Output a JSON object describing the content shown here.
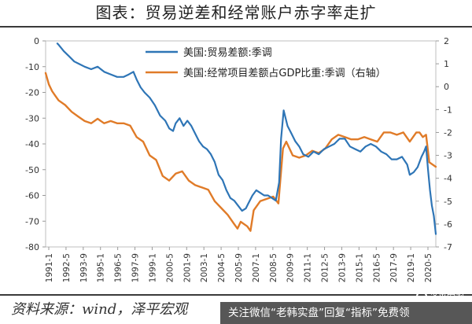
{
  "header": {
    "title": "图表：贸易逆差和经常账户赤字率走扩"
  },
  "footer": {
    "source": "资料来源：wind，泽平宏观",
    "overlay": "关注微信“老韩实盘”回复“指标”免费领"
  },
  "logo": {
    "text": "泽平宏观"
  },
  "chart_data": {
    "type": "line",
    "x_ticks": [
      "1991-1",
      "1992-5",
      "1993-9",
      "1995-1",
      "1996-5",
      "1997-9",
      "1999-1",
      "2000-5",
      "2001-9",
      "2003-1",
      "2004-5",
      "2005-9",
      "2007-1",
      "2008-5",
      "2009-9",
      "2011-1",
      "2012-5",
      "2013-9",
      "2015-1",
      "2016-5",
      "2017-9",
      "2019-1",
      "2020-5"
    ],
    "y_left": {
      "ylim": [
        -80,
        0
      ],
      "ticks": [
        0,
        -10,
        -20,
        -30,
        -40,
        -50,
        -60,
        -70,
        -80
      ]
    },
    "y_right": {
      "ylim": [
        -7,
        2
      ],
      "ticks": [
        2,
        1,
        0,
        -1,
        -2,
        -3,
        -4,
        -5,
        -6,
        -7
      ]
    },
    "legend_position": "top",
    "colors": {
      "trade": "#2e75b6",
      "current_account": "#e07b28"
    },
    "series": [
      {
        "name": "美国:贸易差额:季调",
        "axis": "left",
        "x": [
          1991.9,
          1992.0,
          1992.4,
          1992.8,
          1993.2,
          1993.6,
          1994.0,
          1994.5,
          1995.0,
          1995.5,
          1996.0,
          1996.5,
          1997.0,
          1997.4,
          1997.75,
          1998.0,
          1998.3,
          1998.6,
          1999.0,
          1999.4,
          1999.8,
          2000.2,
          2000.5,
          2000.8,
          2001.0,
          2001.3,
          2001.6,
          2001.9,
          2002.2,
          2002.5,
          2002.8,
          2003.1,
          2003.4,
          2003.7,
          2004.0,
          2004.3,
          2004.6,
          2004.9,
          2005.2,
          2005.5,
          2005.8,
          2006.1,
          2006.4,
          2006.6,
          2006.9,
          2007.2,
          2007.5,
          2007.8,
          2008.1,
          2008.4,
          2008.7,
          2008.95,
          2009.1,
          2009.3,
          2009.6,
          2009.9,
          2010.2,
          2010.5,
          2010.8,
          2011.2,
          2011.6,
          2012.0,
          2012.4,
          2012.8,
          2013.2,
          2013.6,
          2014.0,
          2014.4,
          2014.8,
          2015.2,
          2015.6,
          2016.0,
          2016.4,
          2016.8,
          2017.2,
          2017.6,
          2018.0,
          2018.4,
          2018.8,
          2019.0,
          2019.3,
          2019.6,
          2019.9,
          2020.1,
          2020.25,
          2020.4,
          2020.55,
          2020.7,
          2020.85,
          2021.0
        ],
        "values": [
          -1.0,
          -1.5,
          -4.0,
          -6.0,
          -8.0,
          -9.0,
          -10.0,
          -11.0,
          -10.0,
          -12.0,
          -13.0,
          -14.0,
          -14.0,
          -13.0,
          -12.0,
          -15.0,
          -18.0,
          -20.0,
          -22.0,
          -25.0,
          -29.0,
          -31.0,
          -34.0,
          -35.0,
          -32.0,
          -30.0,
          -33.0,
          -31.0,
          -33.0,
          -36.0,
          -39.0,
          -41.0,
          -42.0,
          -44.0,
          -47.0,
          -52.0,
          -54.0,
          -58.0,
          -61.0,
          -62.0,
          -64.0,
          -66.0,
          -65.0,
          -63.0,
          -60.0,
          -58.0,
          -59.0,
          -60.0,
          -60.0,
          -61.0,
          -62.0,
          -55.0,
          -38.0,
          -27.0,
          -33.0,
          -36.0,
          -39.0,
          -41.0,
          -44.0,
          -45.0,
          -43.0,
          -44.0,
          -42.0,
          -41.0,
          -40.0,
          -38.0,
          -38.0,
          -41.0,
          -42.0,
          -43.0,
          -41.0,
          -40.0,
          -41.0,
          -43.0,
          -44.0,
          -46.0,
          -46.0,
          -45.0,
          -48.0,
          -52.0,
          -51.0,
          -49.0,
          -45.0,
          -43.0,
          -41.0,
          -50.0,
          -58.0,
          -64.0,
          -68.0,
          -75.0
        ]
      },
      {
        "name": "美国:经常项目差额占GDP比重:季调（右轴）",
        "axis": "right",
        "x": [
          1991.0,
          1991.25,
          1991.5,
          1991.75,
          1992.0,
          1992.5,
          1993.0,
          1993.5,
          1994.0,
          1994.5,
          1995.0,
          1995.5,
          1996.0,
          1996.5,
          1997.0,
          1997.5,
          1998.0,
          1998.5,
          1999.0,
          1999.5,
          2000.0,
          2000.5,
          2001.0,
          2001.5,
          2002.0,
          2002.5,
          2003.0,
          2003.5,
          2004.0,
          2004.5,
          2005.0,
          2005.5,
          2005.75,
          2006.0,
          2006.5,
          2006.75,
          2007.0,
          2007.5,
          2008.0,
          2008.5,
          2008.9,
          2009.25,
          2009.5,
          2010.0,
          2010.5,
          2011.0,
          2011.5,
          2012.0,
          2012.5,
          2013.0,
          2013.5,
          2014.0,
          2014.5,
          2015.0,
          2015.5,
          2016.0,
          2016.5,
          2017.0,
          2017.5,
          2018.0,
          2018.5,
          2019.0,
          2019.5,
          2019.75,
          2020.0,
          2020.25,
          2020.5,
          2021.0
        ],
        "values": [
          0.6,
          0.1,
          -0.2,
          -0.4,
          -0.6,
          -0.8,
          -1.1,
          -1.3,
          -1.5,
          -1.6,
          -1.4,
          -1.6,
          -1.5,
          -1.6,
          -1.6,
          -1.7,
          -2.2,
          -2.4,
          -3.0,
          -3.2,
          -3.9,
          -4.1,
          -3.8,
          -3.7,
          -4.1,
          -4.3,
          -4.4,
          -4.5,
          -5.0,
          -5.3,
          -5.6,
          -6.0,
          -6.2,
          -5.9,
          -6.1,
          -6.3,
          -5.4,
          -5.0,
          -4.9,
          -4.8,
          -5.1,
          -2.7,
          -2.4,
          -3.0,
          -3.1,
          -3.0,
          -2.8,
          -2.9,
          -2.7,
          -2.3,
          -2.1,
          -2.2,
          -2.3,
          -2.3,
          -2.2,
          -2.3,
          -2.4,
          -2.0,
          -2.0,
          -2.1,
          -2.0,
          -2.4,
          -2.0,
          -2.0,
          -2.2,
          -2.1,
          -3.3,
          -3.5
        ]
      }
    ]
  }
}
